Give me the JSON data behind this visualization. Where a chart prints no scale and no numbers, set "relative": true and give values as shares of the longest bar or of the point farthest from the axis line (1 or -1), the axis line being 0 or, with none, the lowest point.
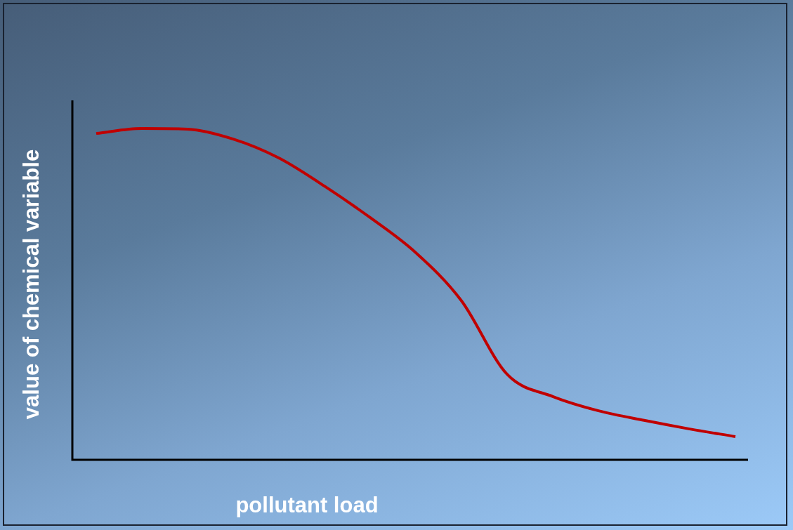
{
  "chart_data": {
    "type": "line",
    "relative": true,
    "xlabel": "pollutant load",
    "ylabel": "value of chemical variable",
    "categories": [
      null,
      null,
      null,
      null,
      null,
      null,
      null,
      null,
      null,
      null,
      null,
      null,
      null,
      null,
      null
    ],
    "series": [
      {
        "color": "#c00000",
        "values": [
          0.985,
          1.0,
          0.998,
          0.968,
          0.911,
          0.826,
          0.731,
          0.625,
          0.48,
          0.258,
          0.191,
          0.148,
          0.119,
          0.093,
          0.07
        ]
      }
    ],
    "marker": "none",
    "line_style": "solid",
    "legend": false
  }
}
